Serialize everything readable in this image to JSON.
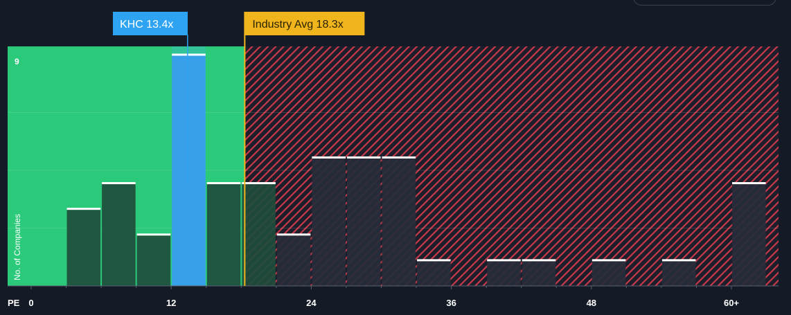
{
  "chart_data": {
    "type": "bar",
    "subject": {
      "label": "KHC 13.4x",
      "value": 13.4
    },
    "industry": {
      "label": "Industry Avg 18.3x",
      "value": 18.3
    },
    "xlabel": "PE",
    "ylabel": "No. of Companies",
    "xlim": [
      0,
      63
    ],
    "ylim": [
      0,
      9
    ],
    "x_ticks": [
      {
        "value": 0,
        "label": "0"
      },
      {
        "value": 12,
        "label": "12"
      },
      {
        "value": 24,
        "label": "24"
      },
      {
        "value": 36,
        "label": "36"
      },
      {
        "value": 48,
        "label": "48"
      },
      {
        "value": 60,
        "label": "60+"
      }
    ],
    "y_ticks": [
      {
        "value": 9,
        "label": "9"
      }
    ],
    "bins": [
      {
        "start": 0,
        "end": 3,
        "value": 0
      },
      {
        "start": 3,
        "end": 6,
        "value": 3
      },
      {
        "start": 6,
        "end": 9,
        "value": 4
      },
      {
        "start": 9,
        "end": 12,
        "value": 2
      },
      {
        "start": 12,
        "end": 15,
        "value": 9
      },
      {
        "start": 15,
        "end": 18,
        "value": 4
      },
      {
        "start": 18,
        "end": 21,
        "value": 4
      },
      {
        "start": 21,
        "end": 24,
        "value": 2
      },
      {
        "start": 24,
        "end": 27,
        "value": 5
      },
      {
        "start": 27,
        "end": 30,
        "value": 5
      },
      {
        "start": 30,
        "end": 33,
        "value": 5
      },
      {
        "start": 33,
        "end": 36,
        "value": 1
      },
      {
        "start": 36,
        "end": 39,
        "value": 0
      },
      {
        "start": 39,
        "end": 42,
        "value": 1
      },
      {
        "start": 42,
        "end": 45,
        "value": 1
      },
      {
        "start": 45,
        "end": 48,
        "value": 0
      },
      {
        "start": 48,
        "end": 51,
        "value": 1
      },
      {
        "start": 51,
        "end": 54,
        "value": 0
      },
      {
        "start": 54,
        "end": 57,
        "value": 1
      },
      {
        "start": 57,
        "end": 60,
        "value": 0
      },
      {
        "start": 60,
        "end": 63,
        "value": 4
      }
    ],
    "colors": {
      "background": "#151b26",
      "good_zone": "#2bc97a",
      "bad_stripe": "#c9394a",
      "bar_good": "#1e4d3c",
      "bar_bad": "#262d3a",
      "bar_highlight": "#38a0e8",
      "bar_cap": "#ffffff",
      "subject_label_bg": "#2ea3f2",
      "industry_label_bg": "#f0b41c",
      "industry_line": "#f0b41c",
      "axis_text": "#ffffff",
      "axis_line": "#5a6270"
    }
  }
}
